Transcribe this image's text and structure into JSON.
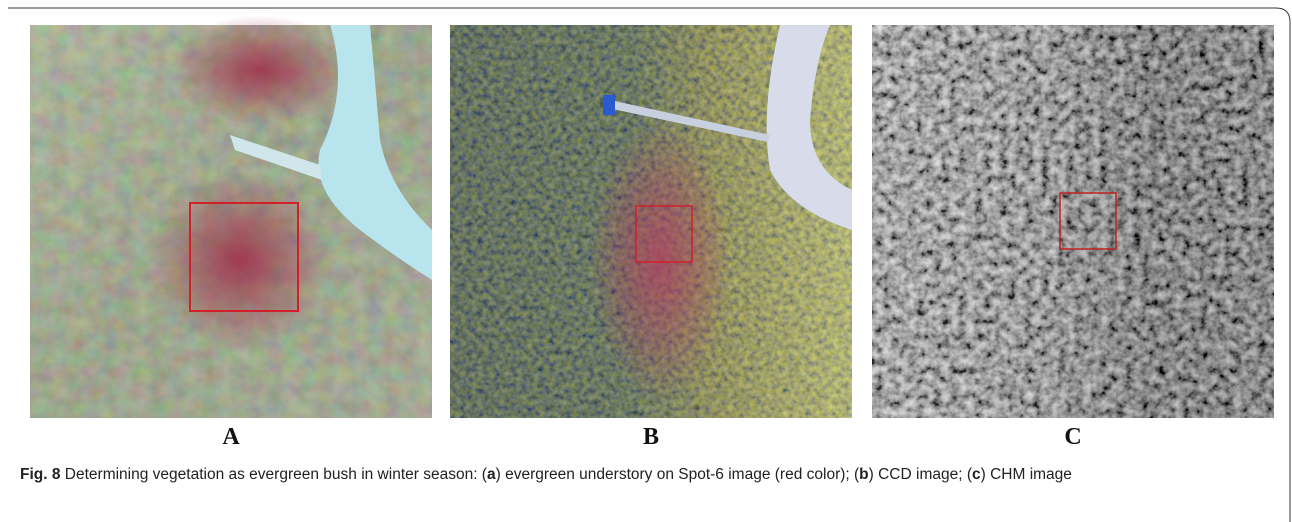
{
  "figure": {
    "panels": [
      {
        "label": "A"
      },
      {
        "label": "B"
      },
      {
        "label": "C"
      }
    ],
    "caption": [
      {
        "text": "Fig. 8",
        "bold": true
      },
      {
        "text": " Determining vegetation as evergreen bush in winter season: (",
        "bold": false
      },
      {
        "text": "a",
        "bold": true
      },
      {
        "text": ") evergreen understory on Spot-6 image (red color); (",
        "bold": false
      },
      {
        "text": "b",
        "bold": true
      },
      {
        "text": ") CCD image; (",
        "bold": false
      },
      {
        "text": "c",
        "bold": true
      },
      {
        "text": ") CHM image",
        "bold": false
      }
    ]
  }
}
